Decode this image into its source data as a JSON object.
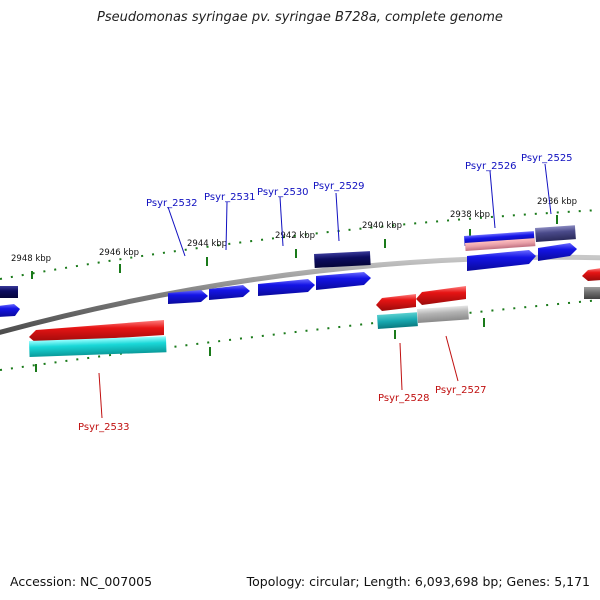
{
  "title": "Pseudomonas syringae pv. syringae B728a, complete genome",
  "footer": {
    "accession": "Accession: NC_007005",
    "topology": "Topology: circular; Length: 6,093,698 bp; Genes: 5,171"
  },
  "scale_labels": [
    "2948 kbp",
    "2946 kbp",
    "2944 kbp",
    "2942 kbp",
    "2940 kbp",
    "2938 kbp",
    "2936 kbp"
  ],
  "gene_labels_forward": [
    "Psyr_2532",
    "Psyr_2531",
    "Psyr_2530",
    "Psyr_2529",
    "Psyr_2526",
    "Psyr_2525"
  ],
  "gene_labels_reverse": [
    "Psyr_2533",
    "Psyr_2528",
    "Psyr_2527"
  ],
  "colors": {
    "backbone": "#7a7a7a",
    "forward_label": "#1010c0",
    "reverse_label": "#c01010",
    "tick": "#1a7a1a",
    "forward_cds": "#1414e6",
    "forward_dark": "#0a0a6e",
    "reverse_cds": "#e61414",
    "reverse_light": "#1ad8d8",
    "grey_feature": "#b4b4b4"
  }
}
